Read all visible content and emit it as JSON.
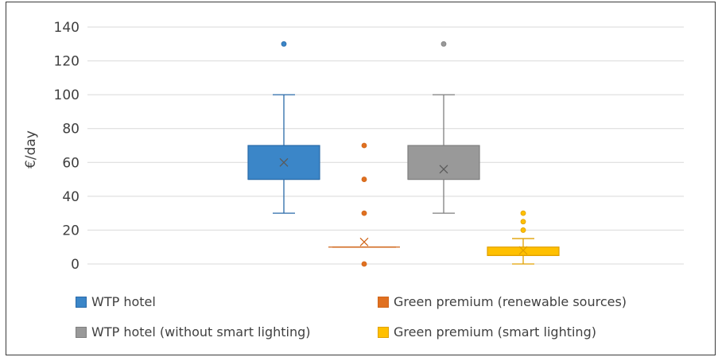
{
  "chart_data": {
    "type": "box",
    "ylabel": "€/day",
    "ylim": [
      0,
      140
    ],
    "yticks": [
      "0",
      "20",
      "40",
      "60",
      "80",
      "100",
      "120",
      "140"
    ],
    "grid": true,
    "legend_position": "bottom",
    "series": [
      {
        "name": "WTP hotel",
        "color": "#3b86c8",
        "min": 30,
        "q1": 50,
        "median": 50,
        "q3": 70,
        "max": 100,
        "mean": 60,
        "outliers": [
          130
        ]
      },
      {
        "name": "Green premium (renewable sources)",
        "color": "#e07020",
        "min": 10,
        "q1": 10,
        "median": 10,
        "q3": 10,
        "max": 10,
        "mean": 13,
        "outliers": [
          0,
          30,
          50,
          70
        ]
      },
      {
        "name": "WTP hotel (without smart lighting)",
        "color": "#999999",
        "min": 30,
        "q1": 50,
        "median": 50,
        "q3": 70,
        "max": 100,
        "mean": 56,
        "outliers": [
          130
        ]
      },
      {
        "name": "Green premium (smart lighting)",
        "color": "#ffc000",
        "min": 0,
        "q1": 5,
        "median": 5,
        "q3": 10,
        "max": 15,
        "mean": 8,
        "outliers": [
          20,
          25,
          30
        ]
      }
    ]
  }
}
